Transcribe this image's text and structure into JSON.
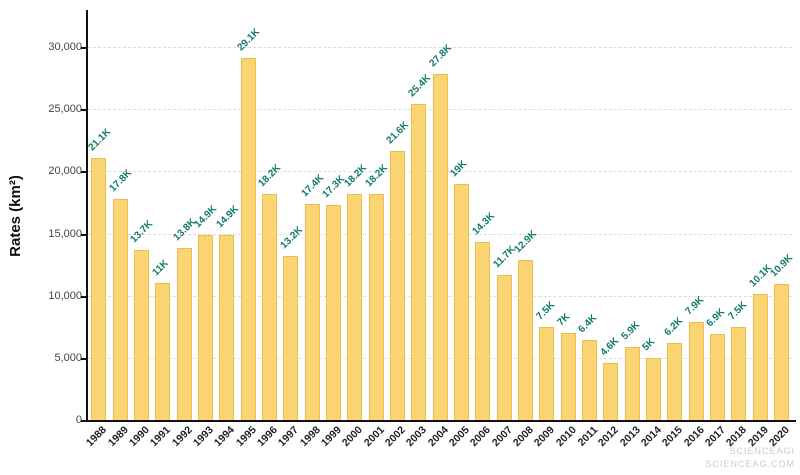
{
  "chart_data": {
    "type": "bar",
    "title": "",
    "xlabel": "",
    "ylabel": "Rates (km²)",
    "ylim": [
      0,
      30000
    ],
    "grid": true,
    "legend": false,
    "yticks": [
      0,
      5000,
      10000,
      15000,
      20000,
      25000,
      30000
    ],
    "ytick_labels": [
      "0",
      "5,000",
      "10,000",
      "15,000",
      "20,000",
      "25,000",
      "30,000"
    ],
    "categories": [
      "1988",
      "1989",
      "1990",
      "1991",
      "1992",
      "1993",
      "1994",
      "1995",
      "1996",
      "1997",
      "1998",
      "1999",
      "2000",
      "2001",
      "2002",
      "2003",
      "2004",
      "2005",
      "2006",
      "2007",
      "2008",
      "2009",
      "2010",
      "2011",
      "2012",
      "2013",
      "2014",
      "2015",
      "2016",
      "2017",
      "2018",
      "2019",
      "2020"
    ],
    "values": [
      21100,
      17800,
      13700,
      11000,
      13800,
      14900,
      14900,
      29100,
      18200,
      13200,
      17400,
      17300,
      18200,
      18200,
      21600,
      25400,
      27800,
      19000,
      14300,
      11700,
      12900,
      7500,
      7000,
      6400,
      4600,
      5900,
      5000,
      6200,
      7900,
      6900,
      7500,
      10100,
      10900
    ],
    "labels": [
      "21.1K",
      "17.8K",
      "13.7K",
      "11K",
      "13.8K",
      "14.9K",
      "14.9K",
      "29.1K",
      "18.2K",
      "13.2K",
      "17.4K",
      "17.3K",
      "18.2K",
      "18.2K",
      "21.6K",
      "25.4K",
      "27.8K",
      "19K",
      "14.3K",
      "11.7K",
      "12.9K",
      "7.5K",
      "7K",
      "6.4K",
      "4.6K",
      "5.9K",
      "5K",
      "6.2K",
      "7.9K",
      "6.9K",
      "7.5K",
      "10.1K",
      "10.9K"
    ],
    "bar_color": "#FAD572",
    "bar_border_color": "#E8BE55",
    "value_label_color": "#0F7A6A",
    "axis_color": "#111111",
    "grid_color": "#DCDCDC"
  },
  "watermark": {
    "line1": "SCIENCEAGI",
    "line2": "SCIENCEAG.COM"
  }
}
